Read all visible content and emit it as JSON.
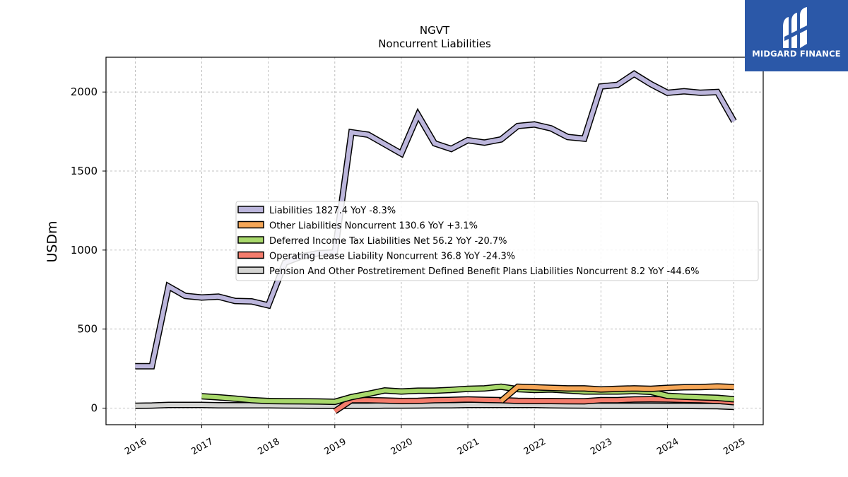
{
  "logo": {
    "text": "MIDGARD FINANCE",
    "background": "#2b58a8"
  },
  "chart_data": {
    "type": "line",
    "title": "NGVT",
    "subtitle": "Noncurrent  Liabilities",
    "ylabel": "USDm",
    "xlabel": "",
    "ylim": [
      -105,
      2220
    ],
    "xlim": [
      2015.56,
      2025.44
    ],
    "yticks": [
      0,
      500,
      1000,
      1500,
      2000
    ],
    "xticks": [
      "2016",
      "2017",
      "2018",
      "2019",
      "2020",
      "2021",
      "2022",
      "2023",
      "2024",
      "2025"
    ],
    "grid": true,
    "legend_position": "center",
    "series": [
      {
        "name": "Liabilities",
        "legend": "Liabilities  1827.4 YoY -8.3%",
        "color": "#bcb6dc",
        "points": [
          [
            2016.0,
            265
          ],
          [
            2016.25,
            265
          ],
          [
            2016.5,
            770
          ],
          [
            2016.75,
            710
          ],
          [
            2017.0,
            700
          ],
          [
            2017.25,
            705
          ],
          [
            2017.5,
            678
          ],
          [
            2017.75,
            675
          ],
          [
            2018.0,
            650
          ],
          [
            2018.25,
            920
          ],
          [
            2018.5,
            960
          ],
          [
            2018.75,
            980
          ],
          [
            2019.0,
            985
          ],
          [
            2019.25,
            1745
          ],
          [
            2019.5,
            1730
          ],
          [
            2019.75,
            1670
          ],
          [
            2020.0,
            1610
          ],
          [
            2020.25,
            1855
          ],
          [
            2020.5,
            1675
          ],
          [
            2020.75,
            1640
          ],
          [
            2021.0,
            1695
          ],
          [
            2021.25,
            1680
          ],
          [
            2021.5,
            1700
          ],
          [
            2021.75,
            1785
          ],
          [
            2022.0,
            1795
          ],
          [
            2022.25,
            1770
          ],
          [
            2022.5,
            1715
          ],
          [
            2022.75,
            1705
          ],
          [
            2023.0,
            2035
          ],
          [
            2023.25,
            2045
          ],
          [
            2023.5,
            2115
          ],
          [
            2023.75,
            2050
          ],
          [
            2024.0,
            1995
          ],
          [
            2024.25,
            2005
          ],
          [
            2024.5,
            1995
          ],
          [
            2024.75,
            2000
          ],
          [
            2025.0,
            1815
          ]
        ]
      },
      {
        "name": "Other Liabilities Noncurrent",
        "legend": "Other Liabilities Noncurrent  130.6 YoY +3.1%",
        "color": "#f5a657",
        "points": [
          [
            2021.5,
            45
          ],
          [
            2021.75,
            135
          ],
          [
            2022.0,
            132
          ],
          [
            2022.25,
            128
          ],
          [
            2022.5,
            125
          ],
          [
            2022.75,
            125
          ],
          [
            2023.0,
            118
          ],
          [
            2023.25,
            122
          ],
          [
            2023.5,
            125
          ],
          [
            2023.75,
            122
          ],
          [
            2024.0,
            128
          ],
          [
            2024.25,
            132
          ],
          [
            2024.5,
            133
          ],
          [
            2024.75,
            137
          ],
          [
            2025.0,
            133
          ]
        ]
      },
      {
        "name": "Deferred Income Tax Liabilities Net",
        "legend": "Deferred Income Tax Liabilities Net  56.2 YoY -20.7%",
        "color": "#a8d86b",
        "points": [
          [
            2017.0,
            75
          ],
          [
            2017.25,
            68
          ],
          [
            2017.5,
            60
          ],
          [
            2017.75,
            50
          ],
          [
            2018.0,
            45
          ],
          [
            2018.25,
            44
          ],
          [
            2018.5,
            43
          ],
          [
            2018.75,
            42
          ],
          [
            2019.0,
            40
          ],
          [
            2019.25,
            70
          ],
          [
            2019.5,
            90
          ],
          [
            2019.75,
            112
          ],
          [
            2020.0,
            105
          ],
          [
            2020.25,
            110
          ],
          [
            2020.5,
            110
          ],
          [
            2020.75,
            115
          ],
          [
            2021.0,
            122
          ],
          [
            2021.25,
            125
          ],
          [
            2021.5,
            135
          ],
          [
            2021.75,
            120
          ],
          [
            2022.0,
            115
          ],
          [
            2022.25,
            118
          ],
          [
            2022.5,
            112
          ],
          [
            2022.75,
            105
          ],
          [
            2023.0,
            105
          ],
          [
            2023.25,
            105
          ],
          [
            2023.5,
            108
          ],
          [
            2023.75,
            103
          ],
          [
            2024.0,
            78
          ],
          [
            2024.25,
            72
          ],
          [
            2024.5,
            68
          ],
          [
            2024.75,
            65
          ],
          [
            2025.0,
            56
          ]
        ]
      },
      {
        "name": "Operating Lease Liability Noncurrent",
        "legend": "Operating Lease Liability Noncurrent  36.8 YoY -24.3%",
        "color": "#f47c6c",
        "points": [
          [
            2019.0,
            -20
          ],
          [
            2019.25,
            50
          ],
          [
            2019.5,
            50
          ],
          [
            2019.75,
            48
          ],
          [
            2020.0,
            45
          ],
          [
            2020.25,
            46
          ],
          [
            2020.5,
            50
          ],
          [
            2020.75,
            52
          ],
          [
            2021.0,
            55
          ],
          [
            2021.25,
            52
          ],
          [
            2021.5,
            50
          ],
          [
            2021.75,
            46
          ],
          [
            2022.0,
            45
          ],
          [
            2022.25,
            45
          ],
          [
            2022.5,
            44
          ],
          [
            2022.75,
            43
          ],
          [
            2023.0,
            50
          ],
          [
            2023.25,
            50
          ],
          [
            2023.5,
            55
          ],
          [
            2023.75,
            56
          ],
          [
            2024.0,
            55
          ],
          [
            2024.25,
            52
          ],
          [
            2024.5,
            50
          ],
          [
            2024.75,
            46
          ],
          [
            2025.0,
            37
          ]
        ]
      },
      {
        "name": "Pension And Other Postretirement Defined Benefit Plans Liabilities Noncurrent",
        "legend": "Pension And Other Postretirement Defined Benefit Plans Liabilities Noncurrent  8.2 YoY -44.6%",
        "color": "#d4d4d2",
        "points": [
          [
            2016.0,
            15
          ],
          [
            2016.25,
            16
          ],
          [
            2016.5,
            20
          ],
          [
            2016.75,
            20
          ],
          [
            2017.0,
            20
          ],
          [
            2017.25,
            18
          ],
          [
            2017.5,
            18
          ],
          [
            2017.75,
            18
          ],
          [
            2018.0,
            18
          ],
          [
            2018.25,
            17
          ],
          [
            2018.5,
            16
          ],
          [
            2018.75,
            15
          ],
          [
            2019.0,
            15
          ],
          [
            2019.25,
            15
          ],
          [
            2019.5,
            15
          ],
          [
            2019.75,
            16
          ],
          [
            2020.0,
            16
          ],
          [
            2020.25,
            17
          ],
          [
            2020.5,
            18
          ],
          [
            2020.75,
            18
          ],
          [
            2021.0,
            20
          ],
          [
            2021.25,
            20
          ],
          [
            2021.5,
            20
          ],
          [
            2021.75,
            20
          ],
          [
            2022.0,
            20
          ],
          [
            2022.25,
            18
          ],
          [
            2022.5,
            17
          ],
          [
            2022.75,
            16
          ],
          [
            2023.0,
            15
          ],
          [
            2023.25,
            15
          ],
          [
            2023.5,
            15
          ],
          [
            2023.75,
            15
          ],
          [
            2024.0,
            14
          ],
          [
            2024.25,
            14
          ],
          [
            2024.5,
            13
          ],
          [
            2024.75,
            12
          ],
          [
            2025.0,
            8
          ]
        ]
      }
    ]
  }
}
